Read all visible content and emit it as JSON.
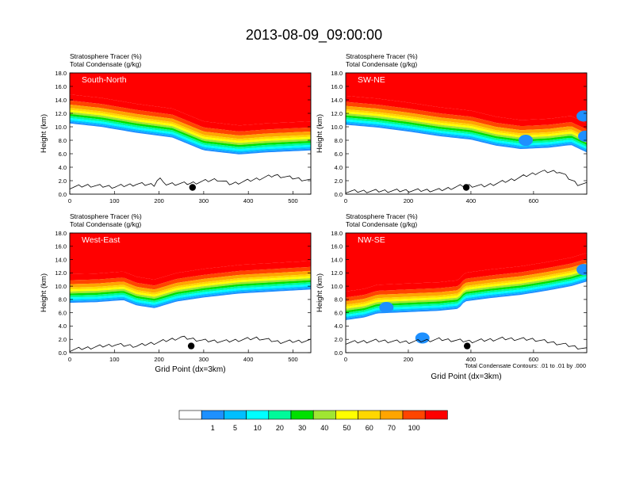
{
  "title": "2013-08-09_09:00:00",
  "chart_data": {
    "type": "heatmap",
    "panels": [
      {
        "label": "South-North",
        "subtitle1": "Stratosphere Tracer   (%)",
        "subtitle2": "Total Condensate   (g/kg)",
        "ylabel": "Height (km)",
        "xlabel": "",
        "xlim": [
          0,
          540
        ],
        "xticks": [
          "0",
          "100",
          "200",
          "300",
          "400",
          "500"
        ],
        "xtick_values": [
          0,
          100,
          200,
          300,
          400,
          500
        ],
        "ylim": [
          0,
          18
        ],
        "yticks": [
          "0.0",
          "2.0",
          "4.0",
          "6.0",
          "8.0",
          "10.0",
          "12.0",
          "14.0",
          "16.0",
          "18.0"
        ],
        "tropopause_km": [
          [
            0,
            14.8
          ],
          [
            70,
            14.3
          ],
          [
            150,
            13.4
          ],
          [
            230,
            12.7
          ],
          [
            300,
            10.8
          ],
          [
            380,
            10.2
          ],
          [
            440,
            10.5
          ],
          [
            540,
            10.8
          ]
        ],
        "terrain_km": [
          [
            0,
            1.0
          ],
          [
            40,
            1.3
          ],
          [
            100,
            1.1
          ],
          [
            150,
            1.5
          ],
          [
            190,
            1.4
          ],
          [
            200,
            2.6
          ],
          [
            210,
            1.5
          ],
          [
            270,
            1.6
          ],
          [
            330,
            2.2
          ],
          [
            360,
            1.5
          ],
          [
            400,
            2.0
          ],
          [
            460,
            2.8
          ],
          [
            540,
            2.0
          ]
        ],
        "marker": [
          275,
          1.0
        ],
        "blue_blobs": []
      },
      {
        "label": "SW-NE",
        "subtitle1": "Stratosphere Tracer   (%)",
        "subtitle2": "Total Condensate   (g/kg)",
        "ylabel": "Height (km)",
        "xlabel": "",
        "xlim": [
          0,
          770
        ],
        "xticks": [
          "0",
          "200",
          "400",
          "600"
        ],
        "xtick_values": [
          0,
          200,
          400,
          600
        ],
        "ylim": [
          0,
          18
        ],
        "yticks": [
          "0.0",
          "2.0",
          "4.0",
          "6.0",
          "8.0",
          "10.0",
          "12.0",
          "14.0",
          "16.0",
          "18.0"
        ],
        "tropopause_km": [
          [
            0,
            14.6
          ],
          [
            100,
            14.2
          ],
          [
            200,
            13.6
          ],
          [
            300,
            12.9
          ],
          [
            400,
            12.4
          ],
          [
            480,
            11.5
          ],
          [
            560,
            11.0
          ],
          [
            650,
            11.2
          ],
          [
            720,
            11.6
          ],
          [
            770,
            10.5
          ]
        ],
        "terrain_km": [
          [
            0,
            0.4
          ],
          [
            150,
            0.5
          ],
          [
            300,
            0.6
          ],
          [
            380,
            1.3
          ],
          [
            440,
            1.2
          ],
          [
            520,
            2.0
          ],
          [
            580,
            2.8
          ],
          [
            620,
            3.3
          ],
          [
            680,
            3.4
          ],
          [
            740,
            1.5
          ],
          [
            770,
            1.5
          ]
        ],
        "marker": [
          385,
          1.0
        ],
        "blue_blobs": [
          [
            760,
            11.6
          ],
          [
            765,
            8.6
          ],
          [
            575,
            8.0
          ]
        ]
      },
      {
        "label": "West-East",
        "subtitle1": "Stratosphere Tracer   (%)",
        "subtitle2": "Total Condensate   (g/kg)",
        "ylabel": "Height (km)",
        "xlabel": "Grid Point (dx=3km)",
        "xlim": [
          0,
          540
        ],
        "xticks": [
          "0",
          "100",
          "200",
          "300",
          "400",
          "500"
        ],
        "xtick_values": [
          0,
          100,
          200,
          300,
          400,
          500
        ],
        "ylim": [
          0,
          18
        ],
        "yticks": [
          "0.0",
          "2.0",
          "4.0",
          "6.0",
          "8.0",
          "10.0",
          "12.0",
          "14.0",
          "16.0",
          "18.0"
        ],
        "tropopause_km": [
          [
            0,
            11.8
          ],
          [
            60,
            11.9
          ],
          [
            120,
            12.2
          ],
          [
            150,
            11.4
          ],
          [
            190,
            11.0
          ],
          [
            240,
            12.0
          ],
          [
            300,
            12.6
          ],
          [
            380,
            13.2
          ],
          [
            460,
            13.5
          ],
          [
            540,
            13.8
          ]
        ],
        "terrain_km": [
          [
            0,
            0.4
          ],
          [
            50,
            0.8
          ],
          [
            100,
            1.2
          ],
          [
            150,
            1.0
          ],
          [
            200,
            1.6
          ],
          [
            250,
            2.3
          ],
          [
            300,
            1.8
          ],
          [
            350,
            1.7
          ],
          [
            420,
            2.2
          ],
          [
            470,
            1.6
          ],
          [
            540,
            1.8
          ]
        ],
        "marker": [
          272,
          1.0
        ],
        "blue_blobs": []
      },
      {
        "label": "NW-SE",
        "subtitle1": "Stratosphere Tracer   (%)",
        "subtitle2": "Total Condensate   (g/kg)",
        "ylabel": "Height (km)",
        "xlabel": "Grid Point (dx=3km)",
        "xlim": [
          0,
          770
        ],
        "xticks": [
          "0",
          "200",
          "400",
          "600"
        ],
        "xtick_values": [
          0,
          200,
          400,
          600
        ],
        "ylim": [
          0,
          18
        ],
        "yticks": [
          "0.0",
          "2.0",
          "4.0",
          "6.0",
          "8.0",
          "10.0",
          "12.0",
          "14.0",
          "16.0",
          "18.0"
        ],
        "tropopause_km": [
          [
            0,
            9.2
          ],
          [
            60,
            9.6
          ],
          [
            100,
            10.2
          ],
          [
            200,
            10.4
          ],
          [
            300,
            10.6
          ],
          [
            360,
            10.9
          ],
          [
            380,
            12.0
          ],
          [
            460,
            12.5
          ],
          [
            560,
            13.0
          ],
          [
            640,
            13.6
          ],
          [
            720,
            14.3
          ],
          [
            770,
            15.0
          ]
        ],
        "terrain_km": [
          [
            0,
            1.5
          ],
          [
            100,
            1.8
          ],
          [
            200,
            1.6
          ],
          [
            300,
            2.0
          ],
          [
            400,
            1.7
          ],
          [
            500,
            2.1
          ],
          [
            600,
            2.0
          ],
          [
            700,
            1.2
          ],
          [
            770,
            0.5
          ]
        ],
        "marker": [
          388,
          1.0
        ],
        "blue_blobs": [
          [
            130,
            6.8
          ],
          [
            760,
            12.5
          ],
          [
            245,
            2.2
          ]
        ]
      }
    ],
    "footnote": "Total Condensate Contours: .01 to .01 by .000",
    "colorbar": {
      "colors": [
        "#ffffff",
        "#1e90ff",
        "#00bfff",
        "#00ffff",
        "#00fa9a",
        "#00e000",
        "#a0e632",
        "#ffff00",
        "#ffd700",
        "#ffa500",
        "#ff4500",
        "#ff0000"
      ],
      "labels": [
        "1",
        "5",
        "10",
        "20",
        "30",
        "40",
        "50",
        "60",
        "70",
        "100"
      ]
    }
  }
}
